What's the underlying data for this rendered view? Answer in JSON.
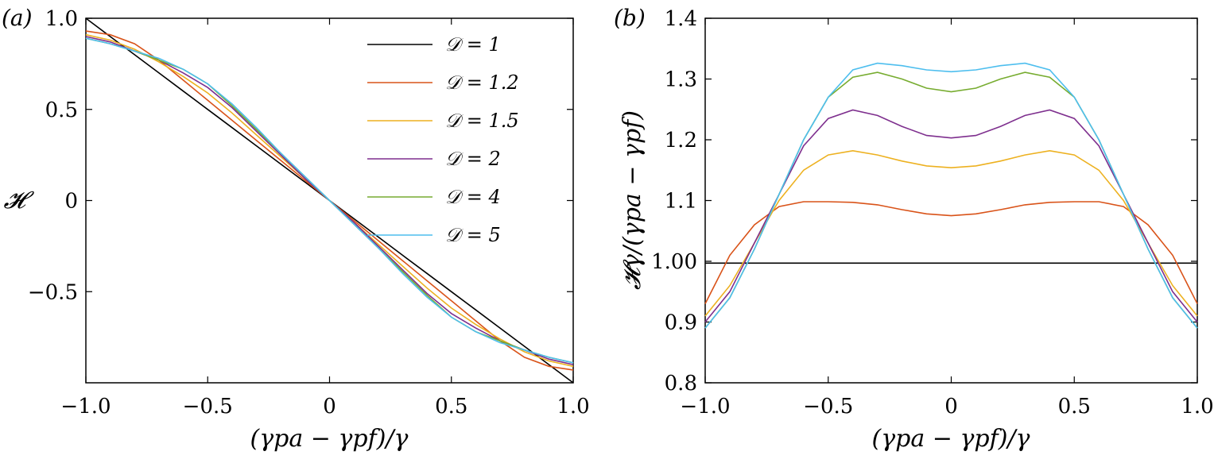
{
  "chart_data": [
    {
      "panel": "(a)",
      "type": "line",
      "xlabel": "(γpa − γpf)/γ",
      "ylabel": "𝓗",
      "xlim": [
        -1.0,
        1.0
      ],
      "ylim": [
        -1.0,
        1.0
      ],
      "x_ticks": [
        -1.0,
        -0.5,
        0,
        0.5,
        1.0
      ],
      "x_tick_labels": [
        "−1.0",
        "−0.5",
        "0",
        "0.5",
        "1.0"
      ],
      "y_ticks": [
        -0.5,
        0,
        0.5,
        1.0
      ],
      "y_tick_labels": [
        "−0.5",
        "0",
        "0.5",
        "1.0"
      ],
      "grid": false,
      "legend": {
        "position": "top-right"
      },
      "x": [
        -1.0,
        -0.9,
        -0.8,
        -0.7,
        -0.6,
        -0.5,
        -0.4,
        -0.3,
        -0.2,
        -0.1,
        0.0,
        0.1,
        0.2,
        0.3,
        0.4,
        0.5,
        0.6,
        0.7,
        0.8,
        0.9,
        1.0
      ],
      "series": [
        {
          "name": "𝒟 = 1",
          "color": "#000000",
          "values": [
            1.0,
            0.9,
            0.8,
            0.7,
            0.6,
            0.5,
            0.4,
            0.3,
            0.2,
            0.1,
            0.0,
            -0.1,
            -0.2,
            -0.3,
            -0.4,
            -0.5,
            -0.6,
            -0.7,
            -0.8,
            -0.9,
            -1.0
          ]
        },
        {
          "name": "𝒟 = 1.2",
          "color": "#d95319",
          "values": [
            0.93,
            0.91,
            0.86,
            0.77,
            0.66,
            0.55,
            0.44,
            0.33,
            0.22,
            0.11,
            0.0,
            -0.11,
            -0.22,
            -0.33,
            -0.44,
            -0.55,
            -0.66,
            -0.77,
            -0.86,
            -0.91,
            -0.93
          ]
        },
        {
          "name": "𝒟 = 1.5",
          "color": "#edb120",
          "values": [
            0.91,
            0.88,
            0.83,
            0.76,
            0.68,
            0.59,
            0.48,
            0.36,
            0.24,
            0.12,
            0.0,
            -0.12,
            -0.24,
            -0.36,
            -0.48,
            -0.59,
            -0.68,
            -0.76,
            -0.83,
            -0.88,
            -0.91
          ]
        },
        {
          "name": "𝒟 = 2",
          "color": "#7e2f8e",
          "values": [
            0.9,
            0.87,
            0.82,
            0.77,
            0.7,
            0.62,
            0.51,
            0.38,
            0.25,
            0.12,
            0.0,
            -0.12,
            -0.25,
            -0.38,
            -0.51,
            -0.62,
            -0.7,
            -0.77,
            -0.82,
            -0.87,
            -0.9
          ]
        },
        {
          "name": "𝒟 = 4",
          "color": "#77ac30",
          "values": [
            0.89,
            0.86,
            0.82,
            0.77,
            0.72,
            0.64,
            0.52,
            0.39,
            0.26,
            0.13,
            0.0,
            -0.13,
            -0.26,
            -0.39,
            -0.52,
            -0.64,
            -0.72,
            -0.77,
            -0.82,
            -0.86,
            -0.89
          ]
        },
        {
          "name": "𝒟 = 5",
          "color": "#4dbeee",
          "values": [
            0.89,
            0.86,
            0.82,
            0.78,
            0.72,
            0.64,
            0.53,
            0.4,
            0.26,
            0.13,
            0.0,
            -0.13,
            -0.26,
            -0.4,
            -0.53,
            -0.64,
            -0.72,
            -0.78,
            -0.82,
            -0.86,
            -0.89
          ]
        }
      ]
    },
    {
      "panel": "(b)",
      "type": "line",
      "xlabel": "(γpa − γpf)/γ",
      "ylabel": "𝓗γ/(γpa − γpf)",
      "xlim": [
        -1.0,
        1.0
      ],
      "ylim": [
        0.8,
        1.4
      ],
      "x_ticks": [
        -1.0,
        -0.5,
        0,
        0.5,
        1.0
      ],
      "x_tick_labels": [
        "−1.0",
        "−0.5",
        "0",
        "0.5",
        "1.0"
      ],
      "y_ticks": [
        0.8,
        0.9,
        1.0,
        1.1,
        1.2,
        1.3,
        1.4
      ],
      "y_tick_labels": [
        "0.8",
        "0.9",
        "1.00",
        "1.1",
        "1.2",
        "1.3",
        "1.4"
      ],
      "grid": false,
      "x": [
        -1.0,
        -0.9,
        -0.8,
        -0.7,
        -0.6,
        -0.5,
        -0.4,
        -0.3,
        -0.2,
        -0.1,
        0.0,
        0.1,
        0.2,
        0.3,
        0.4,
        0.5,
        0.6,
        0.7,
        0.8,
        0.9,
        1.0
      ],
      "series": [
        {
          "name": "𝒟 = 1",
          "color": "#000000",
          "values": [
            0.997,
            0.997,
            0.997,
            0.997,
            0.997,
            0.997,
            0.997,
            0.997,
            0.997,
            0.997,
            0.997,
            0.997,
            0.997,
            0.997,
            0.997,
            0.997,
            0.997,
            0.997,
            0.997,
            0.997,
            0.997
          ]
        },
        {
          "name": "𝒟 = 1.2",
          "color": "#d95319",
          "values": [
            0.93,
            1.01,
            1.06,
            1.09,
            1.098,
            1.098,
            1.097,
            1.093,
            1.085,
            1.078,
            1.075,
            1.078,
            1.085,
            1.093,
            1.097,
            1.098,
            1.098,
            1.09,
            1.06,
            1.01,
            0.93
          ]
        },
        {
          "name": "𝒟 = 1.5",
          "color": "#edb120",
          "values": [
            0.91,
            0.96,
            1.03,
            1.1,
            1.15,
            1.175,
            1.182,
            1.175,
            1.165,
            1.157,
            1.154,
            1.157,
            1.165,
            1.175,
            1.182,
            1.175,
            1.15,
            1.1,
            1.03,
            0.96,
            0.91
          ]
        },
        {
          "name": "𝒟 = 2",
          "color": "#7e2f8e",
          "values": [
            0.9,
            0.95,
            1.03,
            1.11,
            1.19,
            1.235,
            1.249,
            1.24,
            1.222,
            1.207,
            1.203,
            1.207,
            1.222,
            1.24,
            1.249,
            1.235,
            1.19,
            1.11,
            1.03,
            0.95,
            0.9
          ]
        },
        {
          "name": "𝒟 = 4",
          "color": "#77ac30",
          "values": [
            0.89,
            0.94,
            1.02,
            1.11,
            1.2,
            1.27,
            1.303,
            1.311,
            1.3,
            1.285,
            1.279,
            1.285,
            1.3,
            1.311,
            1.303,
            1.27,
            1.2,
            1.11,
            1.02,
            0.94,
            0.89
          ]
        },
        {
          "name": "𝒟 = 5",
          "color": "#4dbeee",
          "values": [
            0.89,
            0.94,
            1.02,
            1.11,
            1.2,
            1.27,
            1.315,
            1.326,
            1.322,
            1.315,
            1.312,
            1.315,
            1.322,
            1.326,
            1.315,
            1.27,
            1.2,
            1.11,
            1.02,
            0.94,
            0.89
          ]
        }
      ]
    }
  ]
}
